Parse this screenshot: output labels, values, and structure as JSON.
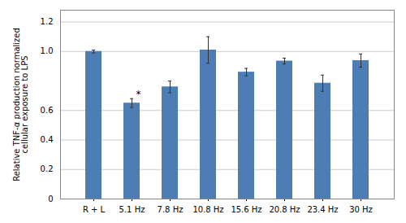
{
  "chart_data": {
    "type": "bar",
    "categories": [
      "R + L",
      "5.1 Hz",
      "7.8 Hz",
      "10.8 Hz",
      "15.6 Hz",
      "20.8 Hz",
      "23.4 Hz",
      "30 Hz"
    ],
    "values": [
      1.0,
      0.65,
      0.76,
      1.01,
      0.86,
      0.935,
      0.785,
      0.938
    ],
    "errors": [
      0.01,
      0.03,
      0.04,
      0.09,
      0.025,
      0.02,
      0.055,
      0.045
    ],
    "color": "#4C7DB5",
    "ylabel": "Relative TNF-α production normalized\ncellular exposure to LPS",
    "ylim": [
      0,
      1.28
    ],
    "yticks": [
      0,
      0.2,
      0.4,
      0.6,
      {
        "value": 1.0,
        "label": "1.0"
      },
      1.2
    ],
    "grid": true,
    "annotations": [
      {
        "text": "*",
        "category": "5.1 Hz"
      }
    ]
  }
}
